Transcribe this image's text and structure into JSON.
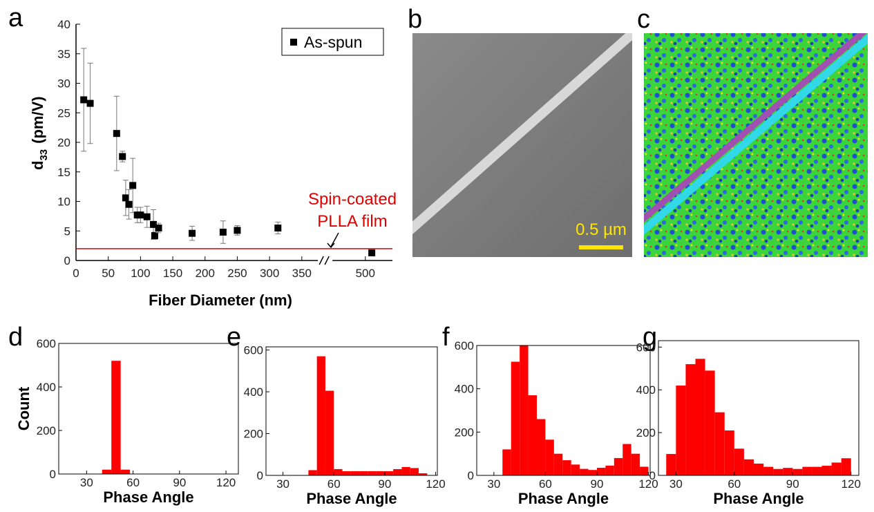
{
  "chart_data": [
    {
      "type": "scatter",
      "panel_label": "a",
      "xlabel": "Fiber Diameter (nm)",
      "ylabel": {
        "main": "d",
        "sub": "33",
        "unit": "(pm/V)"
      },
      "xlim": [
        0,
        542
      ],
      "xbreak": [
        375,
        449
      ],
      "xticks": [
        0,
        50,
        100,
        150,
        200,
        250,
        300,
        350,
        500
      ],
      "ylim": [
        0,
        40
      ],
      "yticks": [
        0,
        5,
        10,
        15,
        20,
        25,
        30,
        35,
        40
      ],
      "series": [
        {
          "name": "As-spun",
          "color": "#000000",
          "x": [
            12,
            22,
            63,
            72,
            77,
            82,
            88,
            95,
            100,
            110,
            120,
            122,
            128,
            180,
            228,
            250,
            313,
            510
          ],
          "values": [
            27.2,
            26.6,
            21.5,
            17.6,
            10.6,
            9.5,
            12.7,
            7.7,
            7.7,
            7.4,
            6.1,
            4.2,
            5.5,
            4.6,
            4.8,
            5.1,
            5.5,
            1.3
          ],
          "errors": [
            8.7,
            6.8,
            6.3,
            0.9,
            3.0,
            2.5,
            4.6,
            1.3,
            1.3,
            1.8,
            2.5,
            0.6,
            0.8,
            1.2,
            1.9,
            0.8,
            1.0,
            0.4
          ]
        }
      ],
      "reference_line": {
        "value": 2,
        "color": "#e00000",
        "label": [
          "Spin-coated",
          "PLLA film"
        ]
      }
    },
    {
      "type": "histogram",
      "panel_label": "d",
      "xlabel": "Phase Angle",
      "ylabel": "Count",
      "color": "#ff0000",
      "xlim": [
        12,
        128
      ],
      "xticks": [
        30,
        60,
        90,
        120
      ],
      "ylim": [
        0,
        600
      ],
      "yticks": [
        0,
        200,
        400,
        600
      ],
      "bins": [
        40,
        46,
        52,
        58
      ],
      "values": [
        20,
        520,
        20
      ]
    },
    {
      "type": "histogram",
      "panel_label": "e",
      "xlabel": "Phase Angle",
      "color": "#ff0000",
      "xlim": [
        20,
        121
      ],
      "xticks": [
        30,
        60,
        90,
        120
      ],
      "ylim": [
        0,
        615
      ],
      "yticks": [
        0,
        200,
        400,
        600
      ],
      "bins": [
        45,
        50,
        55,
        60,
        65,
        70,
        75,
        80,
        85,
        90,
        95,
        100,
        105,
        110,
        115
      ],
      "values": [
        25,
        570,
        405,
        30,
        20,
        20,
        20,
        20,
        20,
        20,
        30,
        40,
        35,
        10
      ]
    },
    {
      "type": "histogram",
      "panel_label": "f",
      "xlabel": "Phase Angle",
      "color": "#ff0000",
      "xlim": [
        20,
        121
      ],
      "xticks": [
        30,
        60,
        90,
        120
      ],
      "ylim": [
        0,
        600
      ],
      "yticks": [
        0,
        200,
        400,
        600
      ],
      "bins": [
        35,
        40,
        45,
        50,
        55,
        60,
        65,
        70,
        75,
        80,
        85,
        90,
        95,
        100,
        105,
        110,
        115,
        120
      ],
      "values": [
        120,
        525,
        600,
        370,
        260,
        165,
        100,
        70,
        50,
        30,
        25,
        35,
        45,
        80,
        145,
        100,
        40
      ]
    },
    {
      "type": "histogram",
      "panel_label": "g",
      "xlabel": "Phase Angle",
      "color": "#ff0000",
      "xlim": [
        21,
        124
      ],
      "xticks": [
        30,
        60,
        90,
        120
      ],
      "ylim": [
        0,
        630
      ],
      "yticks": [
        0,
        200,
        400,
        600
      ],
      "bins": [
        25,
        30,
        35,
        40,
        45,
        50,
        55,
        60,
        65,
        70,
        75,
        80,
        85,
        90,
        95,
        100,
        105,
        110,
        115,
        120
      ],
      "values": [
        100,
        420,
        520,
        545,
        490,
        295,
        210,
        125,
        75,
        55,
        40,
        30,
        35,
        30,
        40,
        40,
        45,
        60,
        80
      ]
    }
  ],
  "images": [
    {
      "panel_label": "b",
      "scale_bar": "0.5 µm"
    },
    {
      "panel_label": "c"
    }
  ]
}
